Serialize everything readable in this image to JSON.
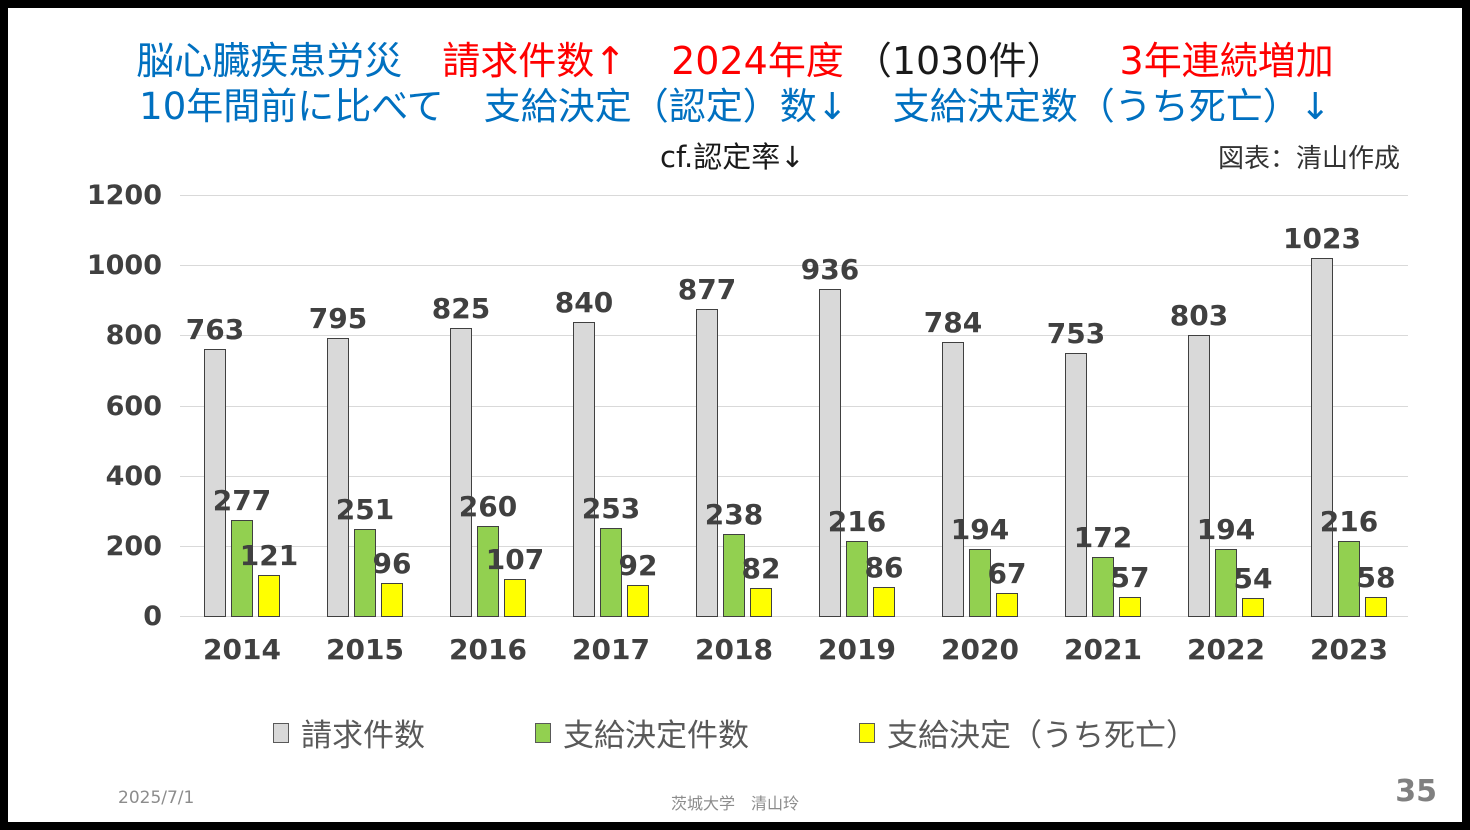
{
  "slide": {
    "title_line1": {
      "part1": "脳心臓疾患労災",
      "part2": "請求件数↑",
      "part3": "2024年度",
      "part4": "（1030件）",
      "part5": "3年連続増加"
    },
    "title_line2": {
      "part1": "10年間前に比べて",
      "part2": "支給決定（認定）数↓",
      "part3": "支給決定数（うち死亡）↓"
    },
    "title_line3": {
      "note": "cf.認定率↓",
      "credit": "図表：清山作成"
    },
    "footer": {
      "date": "2025/7/1",
      "center": "茨城大学　清山玲",
      "page": "35"
    }
  },
  "colors": {
    "headline_blue": "#0070C0",
    "headline_red": "#FF0000",
    "axis_text": "#404040",
    "gridline": "#D9D9D9",
    "bar_claims": "#D9D9D9",
    "bar_approvals": "#92D050",
    "bar_deaths": "#FFFF00",
    "footer_gray": "#8C8C8C"
  },
  "chart_data": {
    "type": "bar",
    "title": "",
    "xlabel": "",
    "ylabel": "",
    "categories": [
      "2014",
      "2015",
      "2016",
      "2017",
      "2018",
      "2019",
      "2020",
      "2021",
      "2022",
      "2023"
    ],
    "series": [
      {
        "name": "請求件数",
        "key": "claims",
        "color": "#D9D9D9",
        "values": [
          763,
          795,
          825,
          840,
          877,
          936,
          784,
          753,
          803,
          1023
        ]
      },
      {
        "name": "支給決定件数",
        "key": "approvals",
        "color": "#92D050",
        "values": [
          277,
          251,
          260,
          253,
          238,
          216,
          194,
          172,
          194,
          216
        ]
      },
      {
        "name": "支給決定（うち死亡）",
        "key": "deaths",
        "color": "#FFFF00",
        "values": [
          121,
          96,
          107,
          92,
          82,
          86,
          67,
          57,
          54,
          58
        ]
      }
    ],
    "ylim": [
      0,
      1200
    ],
    "ytick_interval": 200,
    "yticks": [
      0,
      200,
      400,
      600,
      800,
      1000,
      1200
    ],
    "grid": true,
    "legend_position": "bottom",
    "data_labels": true
  }
}
